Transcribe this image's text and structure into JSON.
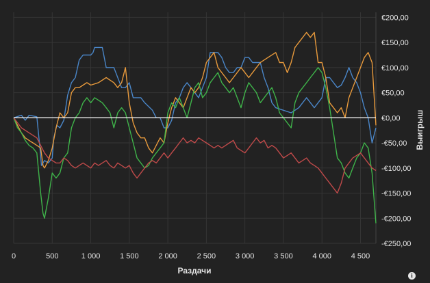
{
  "chart_data": {
    "type": "line",
    "xlabel": "Раздачи",
    "ylabel": "Выигрыш",
    "xlim": [
      0,
      4700
    ],
    "ylim": [
      -250,
      210
    ],
    "x_ticks": [
      {
        "value": 0,
        "label": "0"
      },
      {
        "value": 500,
        "label": "500"
      },
      {
        "value": 1000,
        "label": "1 000"
      },
      {
        "value": 1500,
        "label": "1 500"
      },
      {
        "value": 2000,
        "label": "2 000"
      },
      {
        "value": 2500,
        "label": "2 500"
      },
      {
        "value": 3000,
        "label": "3 000"
      },
      {
        "value": 3500,
        "label": "3 500"
      },
      {
        "value": 4000,
        "label": "4 000"
      },
      {
        "value": 4500,
        "label": "4 500"
      }
    ],
    "y_ticks": [
      {
        "value": 200,
        "label": "€200,00"
      },
      {
        "value": 150,
        "label": "€150,00"
      },
      {
        "value": 100,
        "label": "€100,00"
      },
      {
        "value": 50,
        "label": "€50,00"
      },
      {
        "value": 0,
        "label": "€0,00"
      },
      {
        "value": -50,
        "label": "-€50,00"
      },
      {
        "value": -100,
        "label": "-€100,00"
      },
      {
        "value": -150,
        "label": "-€150,00"
      },
      {
        "value": -200,
        "label": "-€200,00"
      },
      {
        "value": -250,
        "label": "-€250,00"
      }
    ],
    "grid": true,
    "legend": "none",
    "series": [
      {
        "color": "#4a86c8",
        "x": [
          0,
          100,
          150,
          200,
          300,
          340,
          360,
          400,
          450,
          500,
          520,
          560,
          600,
          650,
          700,
          750,
          800,
          850,
          900,
          950,
          1000,
          1030,
          1050,
          1100,
          1150,
          1200,
          1300,
          1400,
          1450,
          1500,
          1550,
          1600,
          1650,
          1700,
          1800,
          1850,
          1900,
          1950,
          2000,
          2050,
          2100,
          2150,
          2200,
          2250,
          2300,
          2350,
          2400,
          2450,
          2500,
          2550,
          2600,
          2650,
          2700,
          2750,
          2800,
          2850,
          2900,
          2950,
          3000,
          3050,
          3100,
          3150,
          3200,
          3250,
          3300,
          3350,
          3400,
          3500,
          3600,
          3700,
          3800,
          3900,
          3950,
          4000,
          4050,
          4100,
          4150,
          4200,
          4250,
          4300,
          4350,
          4400,
          4450,
          4500,
          4550,
          4600,
          4650,
          4700
        ],
        "y": [
          0,
          5,
          -5,
          5,
          2,
          -60,
          -95,
          -85,
          -90,
          -80,
          -40,
          -15,
          -20,
          -5,
          45,
          70,
          80,
          115,
          125,
          125,
          125,
          130,
          140,
          140,
          140,
          100,
          100,
          60,
          60,
          70,
          40,
          40,
          40,
          30,
          15,
          0,
          0,
          -20,
          -20,
          -5,
          30,
          40,
          60,
          70,
          60,
          50,
          40,
          60,
          80,
          130,
          130,
          130,
          120,
          100,
          90,
          90,
          100,
          100,
          120,
          120,
          110,
          110,
          110,
          80,
          60,
          30,
          20,
          15,
          10,
          20,
          40,
          20,
          30,
          40,
          80,
          80,
          70,
          60,
          65,
          80,
          100,
          80,
          70,
          50,
          20,
          0,
          -50,
          -20
        ]
      },
      {
        "color": "#e89a3c",
        "x": [
          0,
          50,
          100,
          150,
          200,
          250,
          300,
          350,
          380,
          400,
          450,
          500,
          550,
          600,
          650,
          700,
          750,
          800,
          850,
          900,
          950,
          1000,
          1100,
          1200,
          1300,
          1350,
          1400,
          1450,
          1500,
          1550,
          1600,
          1650,
          1700,
          1750,
          1800,
          1850,
          1900,
          1950,
          2000,
          2050,
          2100,
          2150,
          2200,
          2250,
          2300,
          2350,
          2400,
          2450,
          2500,
          2550,
          2600,
          2650,
          2700,
          2750,
          2800,
          2850,
          2900,
          2950,
          3000,
          3050,
          3100,
          3150,
          3200,
          3300,
          3400,
          3450,
          3500,
          3550,
          3600,
          3650,
          3700,
          3750,
          3800,
          3850,
          3900,
          3950,
          4000,
          4050,
          4100,
          4150,
          4200,
          4250,
          4300,
          4350,
          4400,
          4450,
          4500,
          4550,
          4600,
          4650,
          4700
        ],
        "y": [
          0,
          -15,
          -30,
          -40,
          -45,
          -50,
          -55,
          -60,
          -95,
          -100,
          -85,
          -60,
          -20,
          10,
          0,
          10,
          50,
          60,
          60,
          65,
          70,
          65,
          70,
          80,
          70,
          60,
          70,
          100,
          30,
          -10,
          -30,
          -40,
          -40,
          -60,
          -70,
          -55,
          -40,
          -50,
          -10,
          20,
          40,
          30,
          20,
          40,
          60,
          50,
          60,
          80,
          110,
          120,
          130,
          100,
          90,
          80,
          70,
          80,
          90,
          100,
          90,
          80,
          90,
          100,
          110,
          120,
          130,
          110,
          110,
          90,
          110,
          140,
          150,
          160,
          170,
          160,
          170,
          110,
          110,
          80,
          30,
          20,
          10,
          20,
          0,
          40,
          60,
          80,
          100,
          120,
          130,
          110,
          -15
        ]
      },
      {
        "color": "#3fb44a",
        "x": [
          0,
          50,
          100,
          150,
          200,
          250,
          300,
          350,
          380,
          400,
          450,
          500,
          550,
          600,
          650,
          700,
          750,
          800,
          850,
          900,
          950,
          1000,
          1050,
          1100,
          1150,
          1200,
          1250,
          1300,
          1350,
          1400,
          1450,
          1500,
          1550,
          1600,
          1650,
          1700,
          1750,
          1800,
          1850,
          1900,
          1950,
          2000,
          2050,
          2100,
          2150,
          2200,
          2250,
          2300,
          2350,
          2400,
          2450,
          2500,
          2550,
          2600,
          2650,
          2700,
          2750,
          2800,
          2850,
          2900,
          2950,
          3000,
          3050,
          3100,
          3150,
          3200,
          3250,
          3300,
          3350,
          3400,
          3450,
          3500,
          3550,
          3600,
          3650,
          3700,
          3750,
          3800,
          3850,
          3900,
          3950,
          4000,
          4050,
          4100,
          4150,
          4200,
          4250,
          4300,
          4350,
          4400,
          4450,
          4500,
          4550,
          4600,
          4650,
          4700
        ],
        "y": [
          0,
          -20,
          -30,
          -45,
          -55,
          -60,
          -70,
          -150,
          -190,
          -200,
          -160,
          -110,
          -120,
          -110,
          -80,
          -70,
          -20,
          0,
          10,
          30,
          40,
          30,
          40,
          35,
          30,
          20,
          10,
          -20,
          10,
          20,
          10,
          -20,
          -50,
          -80,
          -90,
          -100,
          -95,
          -80,
          -70,
          -60,
          -50,
          10,
          30,
          20,
          40,
          20,
          0,
          30,
          60,
          70,
          40,
          50,
          70,
          80,
          90,
          70,
          60,
          50,
          60,
          40,
          20,
          50,
          70,
          60,
          50,
          30,
          40,
          50,
          60,
          40,
          10,
          0,
          -10,
          -20,
          30,
          50,
          60,
          70,
          80,
          90,
          100,
          90,
          60,
          20,
          -30,
          -80,
          -90,
          -110,
          -120,
          -100,
          -80,
          -70,
          -50,
          -60,
          -110,
          -210
        ]
      },
      {
        "color": "#c04a4a",
        "x": [
          0,
          100,
          200,
          300,
          400,
          450,
          500,
          550,
          600,
          650,
          700,
          750,
          800,
          850,
          900,
          950,
          1000,
          1050,
          1100,
          1150,
          1200,
          1250,
          1300,
          1350,
          1400,
          1450,
          1500,
          1550,
          1600,
          1650,
          1700,
          1750,
          1800,
          1850,
          1900,
          1950,
          2000,
          2050,
          2100,
          2150,
          2200,
          2250,
          2300,
          2350,
          2400,
          2450,
          2500,
          2550,
          2600,
          2650,
          2700,
          2750,
          2800,
          2850,
          2900,
          2950,
          3000,
          3050,
          3100,
          3150,
          3200,
          3250,
          3300,
          3350,
          3400,
          3450,
          3500,
          3550,
          3600,
          3650,
          3700,
          3750,
          3800,
          3850,
          3900,
          3950,
          4000,
          4050,
          4100,
          4150,
          4200,
          4250,
          4300,
          4350,
          4400,
          4450,
          4500,
          4550,
          4600,
          4650,
          4700
        ],
        "y": [
          0,
          -20,
          -30,
          -40,
          -70,
          -80,
          -85,
          -90,
          -90,
          -80,
          -85,
          -95,
          -100,
          -95,
          -90,
          -95,
          -100,
          -90,
          -95,
          -90,
          -85,
          -95,
          -100,
          -90,
          -95,
          -100,
          -95,
          -110,
          -120,
          -110,
          -100,
          -90,
          -85,
          -90,
          -80,
          -70,
          -80,
          -70,
          -60,
          -50,
          -40,
          -50,
          -45,
          -50,
          -40,
          -45,
          -50,
          -55,
          -60,
          -55,
          -60,
          -55,
          -50,
          -45,
          -60,
          -65,
          -70,
          -60,
          -50,
          -40,
          -50,
          -45,
          -60,
          -55,
          -60,
          -70,
          -80,
          -75,
          -70,
          -80,
          -90,
          -85,
          -80,
          -90,
          -95,
          -100,
          -110,
          -120,
          -130,
          -140,
          -150,
          -130,
          -100,
          -90,
          -80,
          -75,
          -70,
          -80,
          -90,
          -100,
          -105
        ]
      }
    ]
  },
  "info_icon_glyph": "i"
}
